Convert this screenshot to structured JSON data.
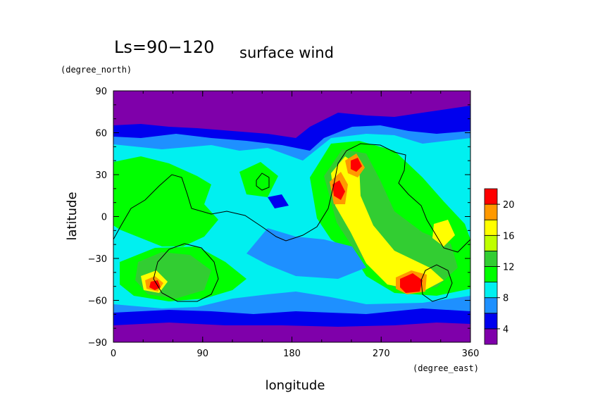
{
  "chart_data": {
    "type": "heatmap",
    "title": "Ls=90−120",
    "subtitle": "surface wind",
    "xlabel": "longitude",
    "ylabel": "latitude",
    "x_unit": "(degree_east)",
    "y_unit": "(degree_north)",
    "xlim": [
      0,
      360
    ],
    "ylim": [
      -90,
      90
    ],
    "x_ticks": [
      "0",
      "90",
      "180",
      "270",
      "360"
    ],
    "y_ticks": [
      "90",
      "60",
      "30",
      "0",
      "−30",
      "−60",
      "−90"
    ],
    "x_tick_values": [
      0,
      90,
      180,
      270,
      360
    ],
    "y_tick_values": [
      90,
      60,
      30,
      0,
      -30,
      -60,
      -90
    ],
    "colorbar": {
      "levels": [
        2,
        4,
        6,
        8,
        10,
        12,
        14,
        16,
        18,
        20,
        22
      ],
      "colors": [
        "#7f00aa",
        "#0000ee",
        "#1e90ff",
        "#00f0f0",
        "#00ff00",
        "#32cd32",
        "#bfff00",
        "#ffff00",
        "#ff9900",
        "#ff0000",
        "#f4a0a0"
      ],
      "tick_labels": [
        "4",
        "8",
        "12",
        "16",
        "20"
      ],
      "tick_values": [
        4,
        8,
        12,
        16,
        20
      ]
    }
  }
}
